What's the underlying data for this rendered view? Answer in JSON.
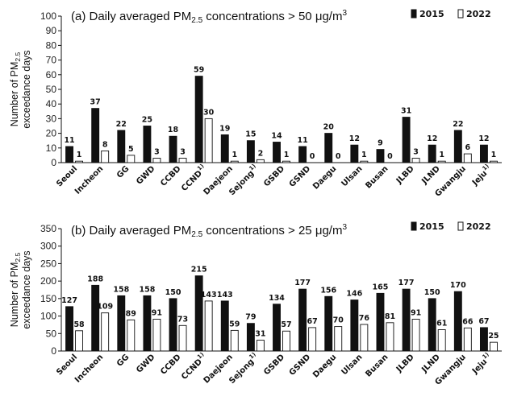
{
  "chart_data": [
    {
      "type": "bar",
      "panel_label": "(a)",
      "title_prefix": "(a) Daily averaged PM",
      "title_sub": "2.5",
      "title_suffix": " concentrations > 50 μg/m",
      "title_sup": "3",
      "ylabel_line1": "Number of PM",
      "ylabel_sub": "2.5",
      "ylabel_line2": "exceedance days",
      "ylim": [
        0,
        100
      ],
      "yticks": [
        0,
        10,
        20,
        30,
        40,
        50,
        60,
        70,
        80,
        90,
        100
      ],
      "legend_position": "top-right",
      "categories": [
        "Seoul",
        "Incheon",
        "GG",
        "GWD",
        "CCBD",
        "CCND",
        "Daejeon",
        "Sejong",
        "GSBD",
        "GSND",
        "Daegu",
        "Ulsan",
        "Busan",
        "JLBD",
        "JLND",
        "Gwangju",
        "Jeju"
      ],
      "category_superscripts": [
        "",
        "",
        "",
        "",
        "",
        "1)",
        "",
        "1)",
        "",
        "",
        "",
        "",
        "",
        "",
        "",
        "",
        "1)"
      ],
      "series": [
        {
          "name": "2015",
          "color": "#111111",
          "values": [
            11,
            37,
            22,
            25,
            18,
            59,
            19,
            15,
            14,
            11,
            20,
            12,
            9,
            31,
            12,
            22,
            12
          ]
        },
        {
          "name": "2022",
          "color": "#ffffff",
          "values": [
            1,
            8,
            5,
            3,
            3,
            30,
            1,
            2,
            1,
            0,
            0,
            1,
            0,
            3,
            1,
            6,
            1
          ]
        }
      ],
      "value_labels": {
        "2015": [
          "11",
          "37",
          "22",
          "25",
          "18",
          "59",
          "19",
          "15",
          "14",
          "11",
          "20",
          "12",
          "9",
          "31",
          "12",
          "22",
          "12"
        ],
        "2022": [
          "1",
          "8",
          "5",
          "3",
          "3",
          "30",
          "1",
          "2",
          "1",
          "0",
          "0",
          "1",
          "0",
          "3",
          "1",
          "6",
          "1"
        ]
      }
    },
    {
      "type": "bar",
      "panel_label": "(b)",
      "title_prefix": "(b) Daily averaged PM",
      "title_sub": "2.5",
      "title_suffix": " concentrations > 25 μg/m",
      "title_sup": "3",
      "ylabel_line1": "Number of PM",
      "ylabel_sub": "2.5",
      "ylabel_line2": "exceedance days",
      "ylim": [
        0,
        350
      ],
      "yticks": [
        0,
        50,
        100,
        150,
        200,
        250,
        300,
        350
      ],
      "legend_position": "top-right",
      "categories": [
        "Seoul",
        "Incheon",
        "GG",
        "GWD",
        "CCBD",
        "CCND",
        "Daejeon",
        "Sejong",
        "GSBD",
        "GSND",
        "Daegu",
        "Ulsan",
        "Busan",
        "JLBD",
        "JLND",
        "Gwangju",
        "Jeju"
      ],
      "category_superscripts": [
        "",
        "",
        "",
        "",
        "",
        "1)",
        "",
        "1)",
        "",
        "",
        "",
        "",
        "",
        "",
        "",
        "",
        "1)"
      ],
      "series": [
        {
          "name": "2015",
          "color": "#111111",
          "values": [
            127,
            188,
            158,
            158,
            150,
            215,
            143,
            79,
            134,
            177,
            156,
            146,
            165,
            177,
            150,
            170,
            67
          ]
        },
        {
          "name": "2022",
          "color": "#ffffff",
          "values": [
            58,
            109,
            89,
            91,
            73,
            143,
            59,
            31,
            57,
            67,
            70,
            76,
            81,
            91,
            61,
            66,
            25
          ]
        }
      ],
      "value_labels": {
        "2015": [
          "127",
          "188",
          "158",
          "158",
          "150",
          "215",
          "143",
          "79",
          "134",
          "177",
          "156",
          "146",
          "165",
          "177",
          "150",
          "170",
          "67"
        ],
        "2022": [
          "58",
          "109",
          "89",
          "91",
          "73",
          "143",
          "59",
          "31",
          "57",
          "67",
          "70",
          "76",
          "81",
          "91",
          "61",
          "66",
          "25"
        ]
      }
    }
  ]
}
